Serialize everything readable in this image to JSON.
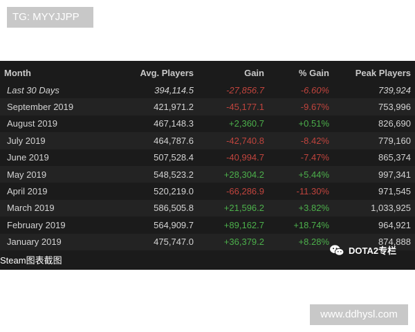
{
  "watermark_top": "TG: MYYJJPP",
  "watermark_bottom": "www.ddhysl.com",
  "table": {
    "headers": [
      "Month",
      "Avg. Players",
      "Gain",
      "% Gain",
      "Peak Players"
    ],
    "rows": [
      {
        "month": "Last 30 Days",
        "avg": "394,114.5",
        "gain": "-27,856.7",
        "pct": "-6.60%",
        "peak": "739,924",
        "italic": true,
        "trend": "neg"
      },
      {
        "month": "September 2019",
        "avg": "421,971.2",
        "gain": "-45,177.1",
        "pct": "-9.67%",
        "peak": "753,996",
        "trend": "neg"
      },
      {
        "month": "August 2019",
        "avg": "467,148.3",
        "gain": "+2,360.7",
        "pct": "+0.51%",
        "peak": "826,690",
        "trend": "pos"
      },
      {
        "month": "July 2019",
        "avg": "464,787.6",
        "gain": "-42,740.8",
        "pct": "-8.42%",
        "peak": "779,160",
        "trend": "neg"
      },
      {
        "month": "June 2019",
        "avg": "507,528.4",
        "gain": "-40,994.7",
        "pct": "-7.47%",
        "peak": "865,374",
        "trend": "neg"
      },
      {
        "month": "May 2019",
        "avg": "548,523.2",
        "gain": "+28,304.2",
        "pct": "+5.44%",
        "peak": "997,341",
        "trend": "pos"
      },
      {
        "month": "April 2019",
        "avg": "520,219.0",
        "gain": "-66,286.9",
        "pct": "-11.30%",
        "peak": "971,545",
        "trend": "neg"
      },
      {
        "month": "March 2019",
        "avg": "586,505.8",
        "gain": "+21,596.2",
        "pct": "+3.82%",
        "peak": "1,033,925",
        "trend": "pos"
      },
      {
        "month": "February 2019",
        "avg": "564,909.7",
        "gain": "+89,162.7",
        "pct": "+18.74%",
        "peak": "964,921",
        "trend": "pos"
      },
      {
        "month": "January 2019",
        "avg": "475,747.0",
        "gain": "+36,379.2",
        "pct": "+8.28%",
        "peak": "874,888",
        "trend": "pos"
      }
    ]
  },
  "footer_caption": "Steam图表截图",
  "wechat_account": "DOTA2专栏",
  "colors": {
    "negative": "#c0443d",
    "positive": "#4cb04b",
    "panel_bg": "#1b1b1b"
  },
  "icons": {
    "wechat": "wechat-icon"
  }
}
